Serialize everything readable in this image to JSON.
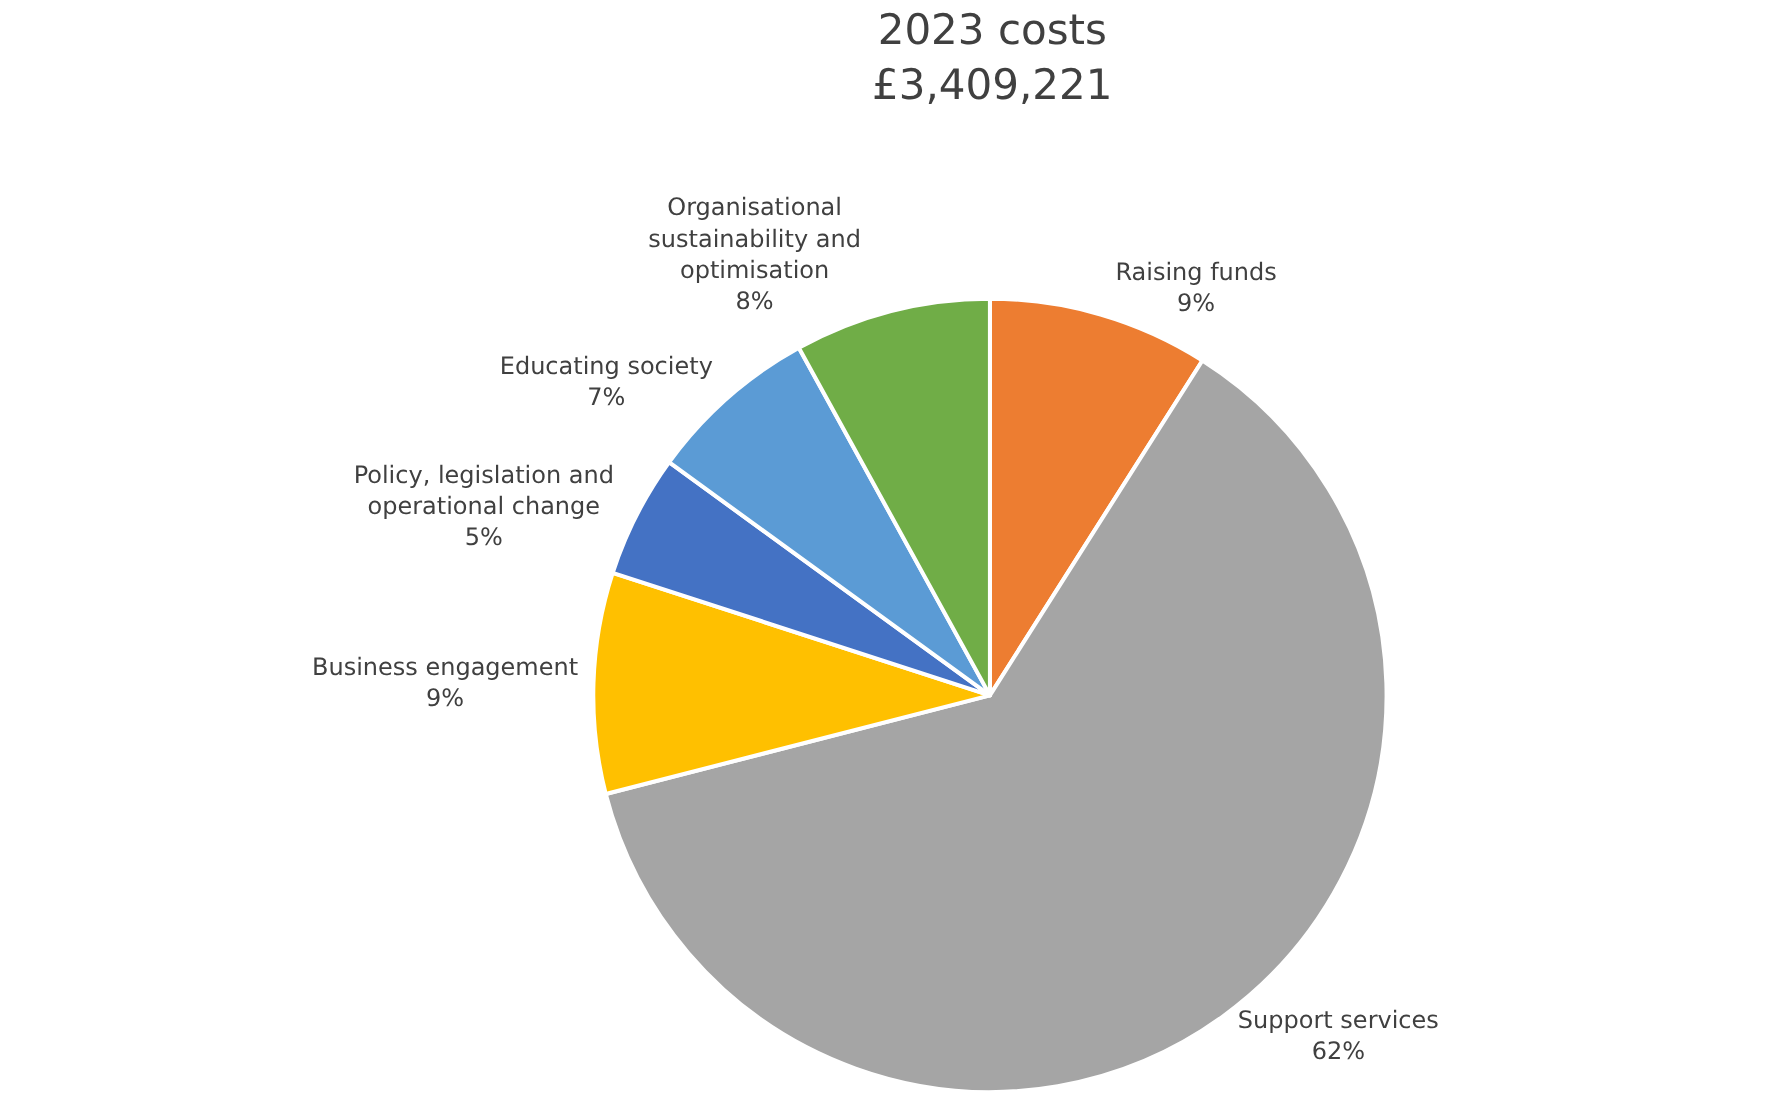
{
  "chart_data": {
    "type": "pie",
    "title": "2023 costs",
    "subtitle": "£3,409,221",
    "categories": [
      "Raising funds",
      "Support services",
      "Business engagement",
      "Policy, legislation and operational change",
      "Educating society",
      "Organisational sustainability and optimisation"
    ],
    "values": [
      9,
      62,
      9,
      5,
      7,
      8
    ],
    "value_labels": [
      "9%",
      "62%",
      "9%",
      "5%",
      "7%",
      "8%"
    ],
    "colors": [
      "#ed7d31",
      "#a5a5a5",
      "#ffc000",
      "#4472c4",
      "#5b9bd5",
      "#70ad47"
    ],
    "legend": false
  }
}
